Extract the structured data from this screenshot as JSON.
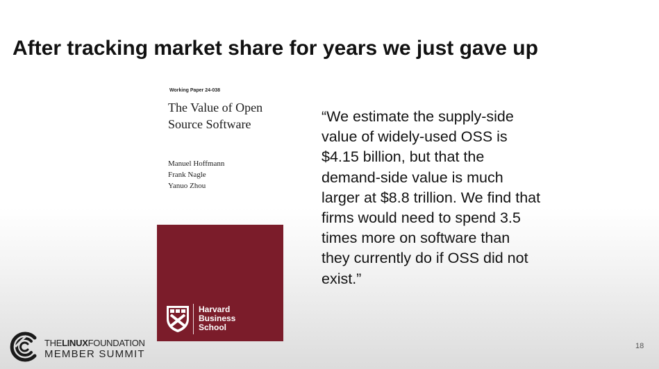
{
  "slide": {
    "title": "After tracking market share for years we just gave up",
    "page_number": "18"
  },
  "paper": {
    "label": "Working Paper 24-038",
    "title": "The Value of Open Source Software",
    "authors": [
      "Manuel Hoffmann",
      "Frank Nagle",
      "Yanuo Zhou"
    ],
    "publisher": [
      "Harvard",
      "Business",
      "School"
    ],
    "publisher_color": "#7b1c2a"
  },
  "quote": {
    "text": "“We estimate the supply-side\nvalue of widely-used OSS is\n$4.15 billion, but that the\ndemand-side value is much\nlarger at $8.8 trillion. We find that\nfirms would need to spend 3.5\ntimes more on software than\nthey currently do if OSS did not\nexist.”"
  },
  "footer": {
    "logo_icon": "linux-foundation-logo-icon",
    "org_prefix": "THE",
    "org_bold": "LINUX",
    "org_suffix": "FOUNDATION",
    "event": "MEMBER SUMMIT"
  }
}
